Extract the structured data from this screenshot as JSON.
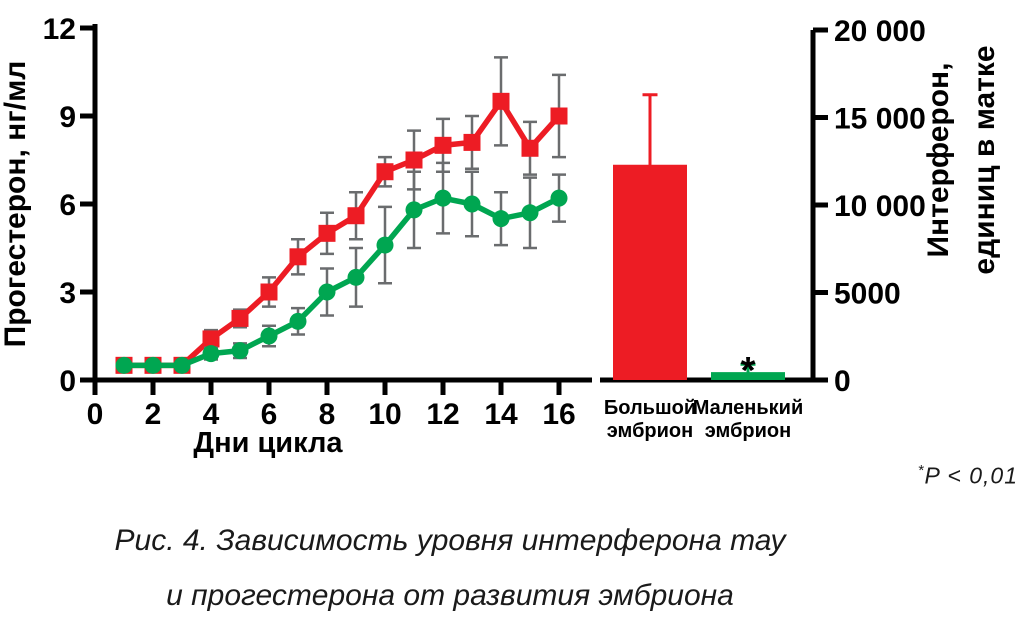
{
  "figure": {
    "caption_line1": "Рис. 4. Зависимость уровня интерферона тау",
    "caption_line2": "и прогестерона от развития эмбриона",
    "pnote_asterisk": "*",
    "pnote_text": "P < 0,01"
  },
  "chart_data": [
    {
      "type": "line",
      "xlabel": "Дни цикла",
      "ylabel": "Прогестерон, нг/мл",
      "xlim": [
        0,
        17
      ],
      "ylim": [
        0,
        12
      ],
      "grid": false,
      "legend": "none",
      "x_ticks": [
        0,
        2,
        4,
        6,
        8,
        10,
        12,
        14,
        16
      ],
      "x_tick_labels": [
        "0",
        "2",
        "4",
        "6",
        "8",
        "10",
        "12",
        "14",
        "16"
      ],
      "y_ticks": [
        0,
        3,
        6,
        9,
        12
      ],
      "y_tick_labels": [
        "0",
        "3",
        "6",
        "9",
        "12"
      ],
      "x": [
        1,
        2,
        3,
        4,
        5,
        6,
        7,
        8,
        9,
        10,
        11,
        12,
        13,
        14,
        15,
        16
      ],
      "axis_color": "#000000",
      "whisker_color": "#6a6c6e",
      "series": [
        {
          "name": "Большой эмбрион",
          "marker": "square",
          "color": "#ED1C24",
          "values": [
            0.5,
            0.5,
            0.5,
            1.4,
            2.1,
            3.0,
            4.2,
            5.0,
            5.6,
            7.1,
            7.5,
            8.0,
            8.1,
            9.5,
            7.9,
            9.0
          ],
          "errors": [
            0,
            0,
            0,
            0.3,
            0.3,
            0.5,
            0.6,
            0.7,
            0.8,
            0.5,
            1.0,
            0.9,
            0.9,
            1.5,
            0.9,
            1.4
          ]
        },
        {
          "name": "Маленький эмбрион",
          "marker": "circle",
          "color": "#00A651",
          "values": [
            0.5,
            0.5,
            0.5,
            0.9,
            1.0,
            1.5,
            2.0,
            3.0,
            3.5,
            4.6,
            5.8,
            6.2,
            6.0,
            5.5,
            5.7,
            6.2
          ],
          "errors": [
            0,
            0,
            0,
            0.2,
            0.25,
            0.35,
            0.45,
            0.8,
            1.0,
            1.3,
            1.3,
            1.2,
            1.1,
            0.9,
            1.2,
            0.8
          ]
        }
      ]
    },
    {
      "type": "bar",
      "ylabel_line1": "Интерферон,",
      "ylabel_line2": "единиц в матке",
      "ylim": [
        0,
        20000
      ],
      "y_ticks": [
        0,
        5000,
        10000,
        15000,
        20000
      ],
      "y_tick_labels": [
        "0",
        "5000",
        "10 000",
        "15 000",
        "20 000"
      ],
      "categories": [
        "Большой эмбрион",
        "Маленький эмбрион"
      ],
      "categories_lines": [
        [
          "Большой",
          "эмбрион"
        ],
        [
          "Маленький",
          "эмбрион"
        ]
      ],
      "values": [
        12300,
        450
      ],
      "errors": [
        4000,
        450
      ],
      "colors": [
        "#ED1C24",
        "#00A651"
      ],
      "axis_color": "#000000",
      "significance": {
        "bar_index": 1,
        "symbol": "*"
      }
    }
  ]
}
